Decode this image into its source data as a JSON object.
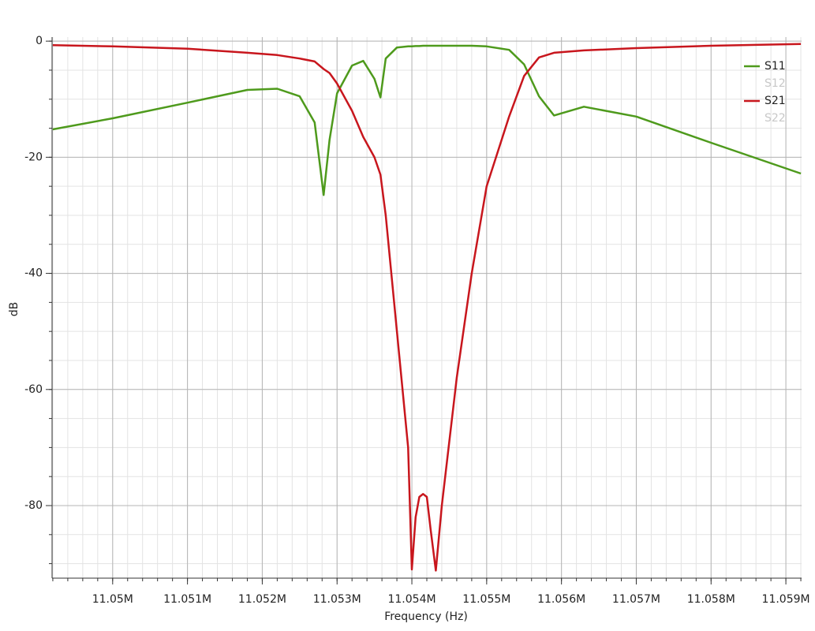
{
  "chart_data": {
    "type": "line",
    "x_label": "Frequency (Hz)",
    "y_label": "dB",
    "x": [
      11049200,
      11050000,
      11051000,
      11051800,
      11052200,
      11052500,
      11052700,
      11052820,
      11052900,
      11053000,
      11053200,
      11053350,
      11053500,
      11053580,
      11053650,
      11053800,
      11053950,
      11054000,
      11054050,
      11054100,
      11054150,
      11054200,
      11054250,
      11054320,
      11054400,
      11054600,
      11054800,
      11055000,
      11055300,
      11055500,
      11055700,
      11055900,
      11056300,
      11057000,
      11058000,
      11059200
    ],
    "series": [
      {
        "name": "S11",
        "color": "#4e9a1c",
        "visible": true,
        "values": [
          -15.2,
          -13.3,
          -10.6,
          -8.4,
          -8.2,
          -9.5,
          -14.0,
          -26.5,
          -17,
          -9,
          -4.2,
          -3.4,
          -6.5,
          -9.7,
          -3,
          -1.1,
          -0.9,
          -0.9,
          -0.85,
          -0.85,
          -0.8,
          -0.8,
          -0.8,
          -0.8,
          -0.8,
          -0.8,
          -0.8,
          -0.9,
          -1.5,
          -4,
          -9.5,
          -12.8,
          -11.3,
          -13,
          -17.5,
          -22.8
        ]
      },
      {
        "name": "S12",
        "color": "#c8c8c8",
        "visible": false,
        "values": [
          null,
          null,
          null,
          null,
          null,
          null,
          null,
          null,
          null,
          null,
          null,
          null,
          null,
          null,
          null,
          null,
          null,
          null,
          null,
          null,
          null,
          null,
          null,
          null,
          null,
          null,
          null,
          null,
          null,
          null,
          null,
          null,
          null,
          null,
          null,
          null
        ]
      },
      {
        "name": "S21",
        "color": "#c8161d",
        "visible": true,
        "values": [
          -0.7,
          -0.9,
          -1.3,
          -2.0,
          -2.4,
          -3.0,
          -3.5,
          -4.8,
          -5.5,
          -7.3,
          -12,
          -16.5,
          -20,
          -23,
          -30,
          -50,
          -70,
          -91,
          -82,
          -78.5,
          -78,
          -78.5,
          -84,
          -91.2,
          -80,
          -58,
          -40,
          -25,
          -13,
          -6,
          -2.8,
          -2.0,
          -1.6,
          -1.2,
          -0.8,
          -0.5
        ]
      },
      {
        "name": "S22",
        "color": "#c8c8c8",
        "visible": false,
        "values": [
          null,
          null,
          null,
          null,
          null,
          null,
          null,
          null,
          null,
          null,
          null,
          null,
          null,
          null,
          null,
          null,
          null,
          null,
          null,
          null,
          null,
          null,
          null,
          null,
          null,
          null,
          null,
          null,
          null,
          null,
          null,
          null,
          null,
          null,
          null,
          null
        ]
      }
    ],
    "xlim": [
      11049190,
      11059210
    ],
    "ylim": [
      -92.5,
      0.7
    ],
    "xticks": [
      {
        "value": 11050000,
        "label": "11.05M"
      },
      {
        "value": 11051000,
        "label": "11.051M"
      },
      {
        "value": 11052000,
        "label": "11.052M"
      },
      {
        "value": 11053000,
        "label": "11.053M"
      },
      {
        "value": 11054000,
        "label": "11.054M"
      },
      {
        "value": 11055000,
        "label": "11.055M"
      },
      {
        "value": 11056000,
        "label": "11.056M"
      },
      {
        "value": 11057000,
        "label": "11.057M"
      },
      {
        "value": 11058000,
        "label": "11.058M"
      },
      {
        "value": 11059000,
        "label": "11.059M"
      }
    ],
    "yticks": [
      0,
      -20,
      -40,
      -60,
      -80
    ],
    "grid": true,
    "legend": "top-right"
  }
}
